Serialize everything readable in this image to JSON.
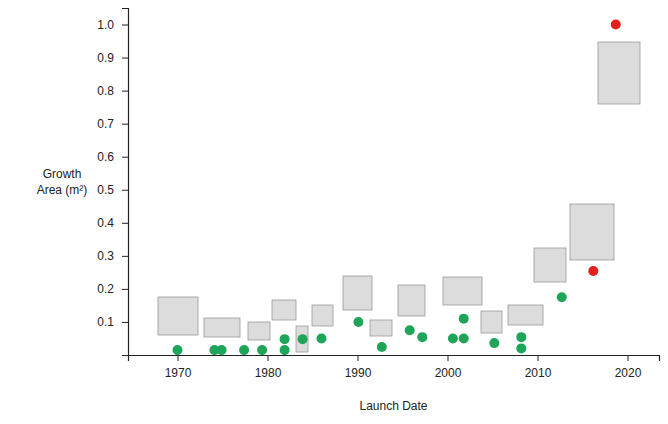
{
  "chart_data": {
    "type": "scatter",
    "x_label": "Launch Date",
    "y_label": [
      "Growth",
      "Area (m²)"
    ],
    "xlim": [
      1964.5,
      2023.5
    ],
    "xticks": [
      1970,
      1980,
      1990,
      2000,
      2010,
      2020
    ],
    "ylim": [
      0,
      1.05
    ],
    "yticks": [
      0.1,
      0.2,
      0.3,
      0.4,
      0.5,
      0.6,
      0.7,
      0.8,
      0.9,
      {
        "value": 1,
        "label": "1.0"
      }
    ],
    "grid": false,
    "series": [
      {
        "color": "#1fa55a",
        "marker": "circle",
        "x": [
          1970,
          1974.1,
          1974.9,
          1977.4,
          1979.4,
          1981.9,
          1981.9,
          1983.9,
          1986,
          1990.1,
          1992.7,
          1995.8,
          1997.2,
          2000.6,
          2001.8,
          2001.8,
          2005.2,
          2008.2,
          2008.2,
          2012.7
        ],
        "values": [
          0.015,
          0.015,
          0.015,
          0.015,
          0.015,
          0.048,
          0.015,
          0.048,
          0.05,
          0.1,
          0.024,
          0.075,
          0.054,
          0.05,
          0.05,
          0.11,
          0.036,
          0.054,
          0.02,
          0.175
        ]
      },
      {
        "color": "#e3201b",
        "marker": "circle",
        "x": [
          2016.2,
          2018.7
        ],
        "values": [
          0.254,
          1
        ]
      }
    ]
  }
}
